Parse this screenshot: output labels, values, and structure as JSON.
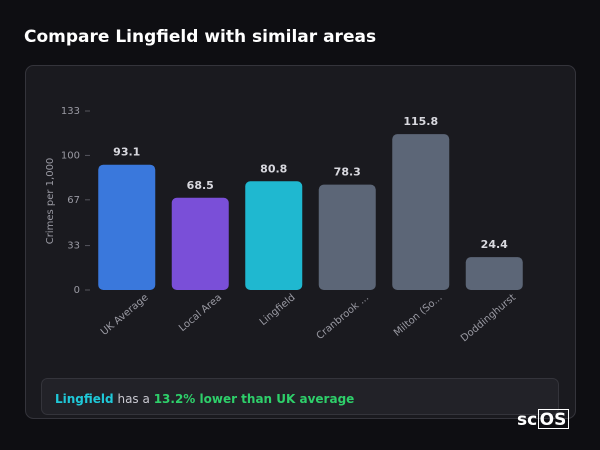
{
  "chart_data": {
    "type": "bar",
    "title": "Compare Lingfield with similar areas",
    "y_label": "Crimes per 1,000",
    "categories": [
      "UK Average",
      "Local Area",
      "Lingfield",
      "Cranbrook ...",
      "Milton (So...",
      "Doddinghurst"
    ],
    "values": [
      93.1,
      68.5,
      80.8,
      78.3,
      115.8,
      24.4
    ],
    "colors": [
      "#3a78dc",
      "#7a4fd8",
      "#1fb8d0",
      "#5c6677",
      "#5c6677",
      "#5c6677"
    ],
    "ylim": [
      0,
      133
    ],
    "yticks": [
      0,
      33,
      67,
      100,
      133
    ]
  },
  "summary": {
    "area": "Lingfield",
    "text": "has a",
    "comparison": "13.2% lower than UK average"
  },
  "logo": {
    "prefix": "sc",
    "boxed": "OS"
  }
}
